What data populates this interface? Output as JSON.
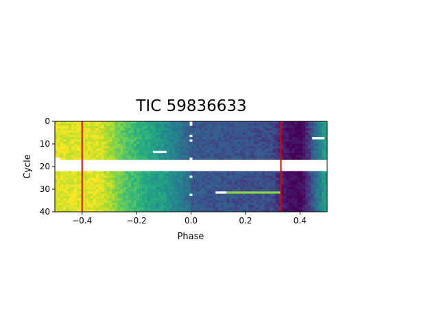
{
  "chart_data": {
    "type": "heatmap",
    "title": "TIC 59836633",
    "xlabel": "Phase",
    "ylabel": "Cycle",
    "xlim": [
      -0.5,
      0.5
    ],
    "ylim": [
      40,
      0
    ],
    "xticks": [
      -0.4,
      -0.2,
      0.0,
      0.2,
      0.4
    ],
    "xtick_labels": [
      "−0.4",
      "−0.2",
      "0.0",
      "0.2",
      "0.4"
    ],
    "yticks": [
      0,
      10,
      20,
      30,
      40
    ],
    "ytick_labels": [
      "0",
      "10",
      "20",
      "30",
      "40"
    ],
    "colormap": "viridis",
    "color_value_range": [
      0,
      1
    ],
    "n_phase_bins": 100,
    "n_cycles": 40,
    "gap_cycles": [
      17,
      18,
      19,
      20,
      21
    ],
    "gap_cells": [
      {
        "cycle": 16,
        "phase_start": -0.5,
        "phase_end": -0.48
      },
      {
        "cycle": 13,
        "phase_start": -0.14,
        "phase_end": -0.09
      },
      {
        "cycle": 7,
        "phase_start": 0.445,
        "phase_end": 0.49
      },
      {
        "cycle": 31,
        "phase_start": 0.09,
        "phase_end": 0.13
      },
      {
        "cycle": 0,
        "phase_start": -0.005,
        "phase_end": 0.005
      },
      {
        "cycle": 1,
        "phase_start": -0.005,
        "phase_end": 0.005
      },
      {
        "cycle": 6,
        "phase_start": -0.005,
        "phase_end": 0.005
      },
      {
        "cycle": 8,
        "phase_start": -0.005,
        "phase_end": 0.005
      },
      {
        "cycle": 16,
        "phase_start": -0.005,
        "phase_end": 0.005
      },
      {
        "cycle": 24,
        "phase_start": -0.005,
        "phase_end": 0.005
      },
      {
        "cycle": 32,
        "phase_start": -0.005,
        "phase_end": 0.005
      }
    ],
    "vertical_lines": [
      {
        "x": -0.4,
        "color": "#e00000"
      },
      {
        "x": 0.33,
        "color": "#e00000"
      }
    ],
    "grid": false
  }
}
